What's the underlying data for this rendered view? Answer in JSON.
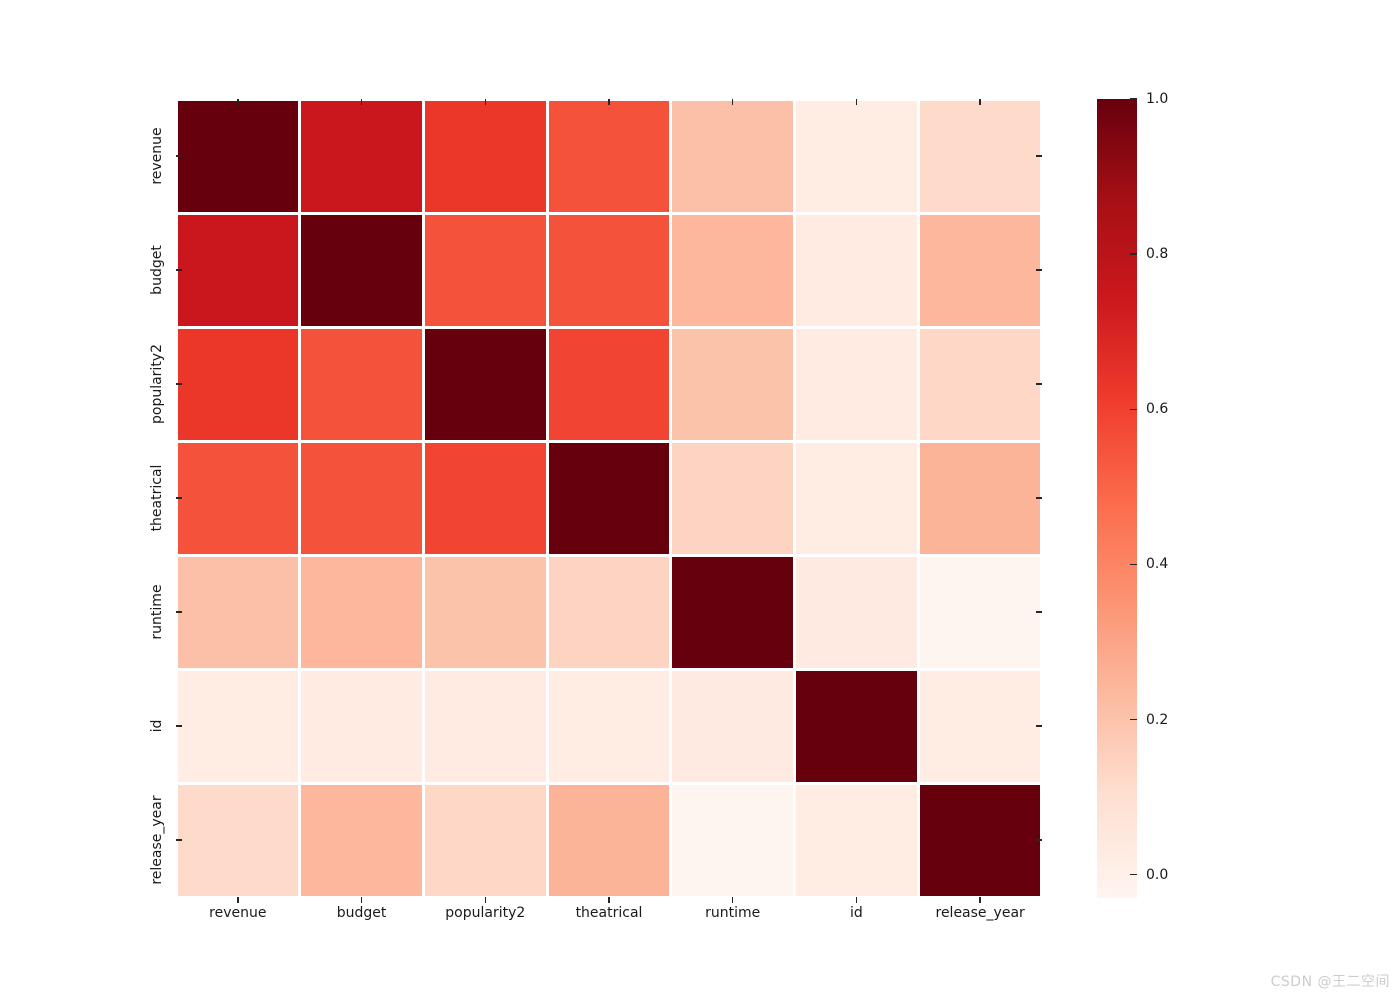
{
  "figure": {
    "background": "#ffffff"
  },
  "watermark": {
    "text": "CSDN @王二空间",
    "color": "#cccccc"
  },
  "chart_data": {
    "type": "heatmap",
    "title": "",
    "description": "Correlation matrix heatmap with Reds colormap and vertical colorbar on the right",
    "categories": [
      "revenue",
      "budget",
      "popularity2",
      "theatrical",
      "runtime",
      "id",
      "release_year"
    ],
    "matrix": [
      [
        1.0,
        0.75,
        0.63,
        0.55,
        0.21,
        0.02,
        0.12
      ],
      [
        0.75,
        1.0,
        0.55,
        0.55,
        0.24,
        0.03,
        0.24
      ],
      [
        0.63,
        0.55,
        1.0,
        0.59,
        0.2,
        0.03,
        0.13
      ],
      [
        0.55,
        0.55,
        0.59,
        1.0,
        0.14,
        0.02,
        0.25
      ],
      [
        0.21,
        0.24,
        0.2,
        0.14,
        1.0,
        0.04,
        -0.03
      ],
      [
        0.02,
        0.03,
        0.03,
        0.02,
        0.04,
        1.0,
        0.02
      ],
      [
        0.12,
        0.24,
        0.13,
        0.25,
        -0.03,
        0.02,
        1.0
      ]
    ],
    "vmin": -0.03,
    "vmax": 1.0,
    "colormap_name": "Reds",
    "colormap_stops": [
      "#fff5f0",
      "#fee0d2",
      "#fcbba1",
      "#fc9272",
      "#fb6a4a",
      "#ef3b2c",
      "#cb181d",
      "#a50f15",
      "#67000d"
    ],
    "cell_gap_color": "#ffffff",
    "axis_tick_color": "#262626",
    "axis_label_color": "#1a1a1a",
    "grid": false,
    "colorbar": {
      "position": "right",
      "tick_labels": [
        "1.0",
        "0.8",
        "0.6",
        "0.4",
        "0.2",
        "0.0"
      ],
      "tick_values": [
        1.0,
        0.8,
        0.6,
        0.4,
        0.2,
        0.0
      ]
    }
  }
}
